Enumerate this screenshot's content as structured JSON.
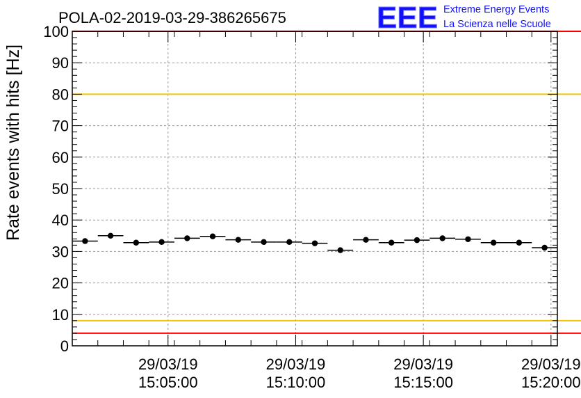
{
  "chart_data": {
    "type": "scatter",
    "title": "POLA-02-2019-03-29-386265675",
    "xlabel": "",
    "ylabel": "Rate events with hits [Hz]",
    "ylim": [
      0,
      100
    ],
    "xlim_minutes": [
      0,
      19
    ],
    "yticks": [
      "0",
      "10",
      "20",
      "30",
      "40",
      "50",
      "60",
      "70",
      "80",
      "90",
      "100"
    ],
    "xticks": [
      {
        "minute": 3.75,
        "date": "29/03/19",
        "time": "15:05:00"
      },
      {
        "minute": 8.75,
        "date": "29/03/19",
        "time": "15:10:00"
      },
      {
        "minute": 13.75,
        "date": "29/03/19",
        "time": "15:15:00"
      },
      {
        "minute": 18.75,
        "date": "29/03/19",
        "time": "15:20:00"
      }
    ],
    "bin_width_minutes": 1,
    "series": [
      {
        "name": "rate",
        "x": [
          0.5,
          1.5,
          2.5,
          3.5,
          4.5,
          5.5,
          6.5,
          7.5,
          8.5,
          9.5,
          10.5,
          11.5,
          12.5,
          13.5,
          14.5,
          15.5,
          16.5,
          17.5,
          18.5
        ],
        "values": [
          33.3,
          35.0,
          32.8,
          33.0,
          34.2,
          34.8,
          33.7,
          33.0,
          33.0,
          32.6,
          30.4,
          33.7,
          32.8,
          33.6,
          34.2,
          33.9,
          32.8,
          32.8,
          31.2
        ]
      }
    ],
    "reference_lines": [
      {
        "name": "upper-red",
        "value": 100,
        "color": "#ff0000"
      },
      {
        "name": "upper-yellow",
        "value": 80,
        "color": "#f2c500"
      },
      {
        "name": "lower-yellow",
        "value": 8,
        "color": "#f2c500"
      },
      {
        "name": "lower-red",
        "value": 4,
        "color": "#ff0000"
      }
    ]
  },
  "logo": {
    "big": "EEE",
    "line1": "Extreme Energy Events",
    "line2": "La Scienza nelle Scuole",
    "color": "#1010ff"
  }
}
